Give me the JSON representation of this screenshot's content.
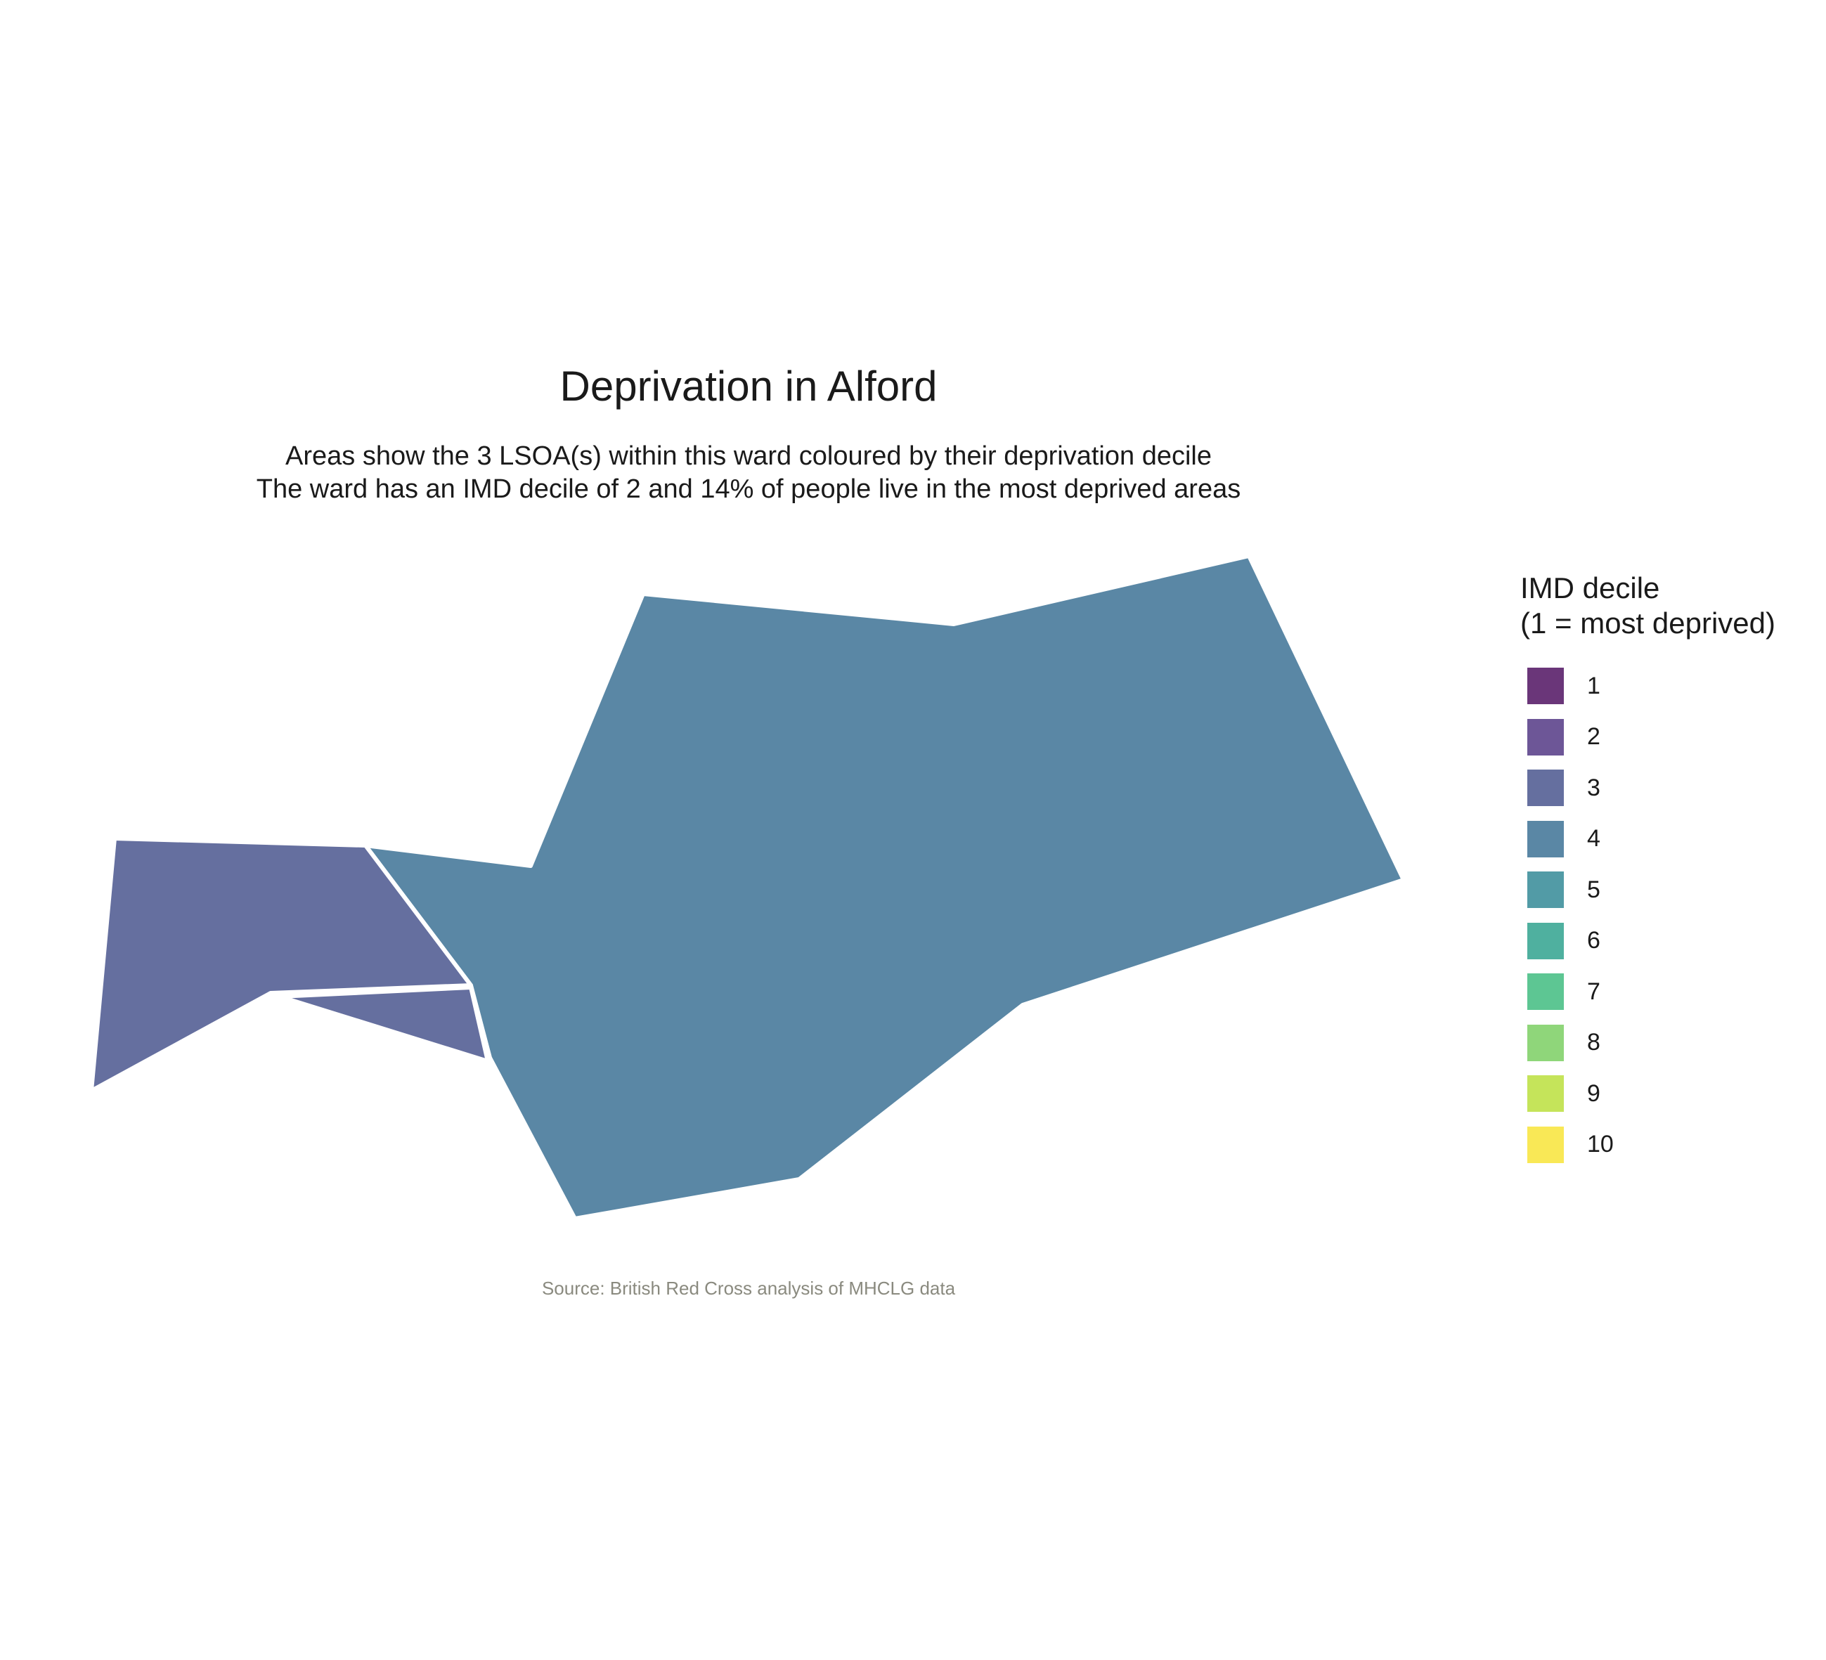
{
  "title": "Deprivation in Alford",
  "subtitle_line1": "Areas show the 3 LSOA(s) within this ward coloured by their deprivation decile",
  "subtitle_line2": "The ward has an IMD decile of 2 and 14% of people live in the most deprived areas",
  "caption": "Source: British Red Cross analysis of MHCLG data",
  "legend": {
    "title_line1": "IMD decile",
    "title_line2": "(1 = most deprived)",
    "items": [
      {
        "label": "1",
        "color": "#6a3679"
      },
      {
        "label": "2",
        "color": "#6d5697"
      },
      {
        "label": "3",
        "color": "#656f9f"
      },
      {
        "label": "4",
        "color": "#5a87a5"
      },
      {
        "label": "5",
        "color": "#529ba6"
      },
      {
        "label": "6",
        "color": "#4fb09f"
      },
      {
        "label": "7",
        "color": "#5dc693"
      },
      {
        "label": "8",
        "color": "#8fd67a"
      },
      {
        "label": "9",
        "color": "#c5e45a"
      },
      {
        "label": "10",
        "color": "#f9e856"
      }
    ]
  },
  "areas": [
    {
      "name": "lsoa-west",
      "decile": 3,
      "color": "#656f9f"
    },
    {
      "name": "lsoa-south-sliver",
      "decile": 3,
      "color": "#656f9f"
    },
    {
      "name": "lsoa-main",
      "decile": 4,
      "color": "#5a87a5"
    }
  ]
}
